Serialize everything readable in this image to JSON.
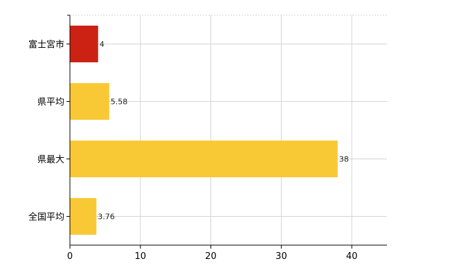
{
  "chart_data": {
    "type": "bar",
    "orientation": "horizontal",
    "categories": [
      "富士宮市",
      "県平均",
      "県最大",
      "全国平均"
    ],
    "values": [
      4,
      5.58,
      38,
      3.76
    ],
    "data_labels": [
      "4",
      "5.58",
      "38",
      "3.76"
    ],
    "colors": [
      "#cc2214",
      "#f9c935",
      "#f9c935",
      "#f9c935"
    ],
    "xlim": [
      0,
      45
    ],
    "x_ticks": [
      0,
      10,
      20,
      30,
      40
    ],
    "grid": true,
    "title": "",
    "xlabel": "",
    "ylabel": ""
  }
}
